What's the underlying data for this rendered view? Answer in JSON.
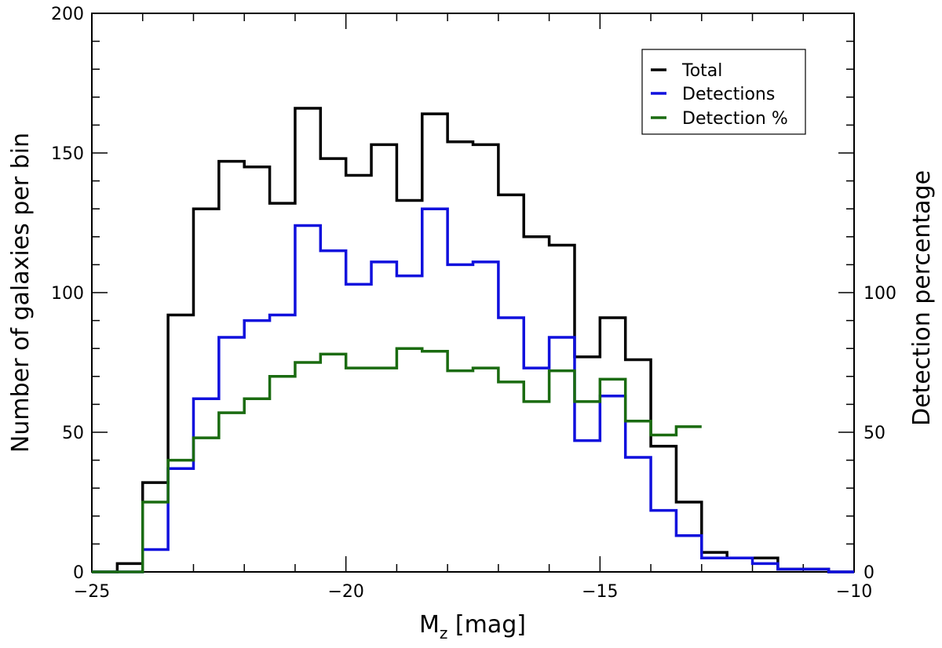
{
  "chart_data": {
    "type": "line",
    "step": true,
    "title": "",
    "xlabel": "M",
    "xlabel_sub": "z",
    "xlabel_unit": " [mag]",
    "ylabel": "Number of galaxies per bin",
    "y2label": "Detection percentage",
    "xlim": [
      -25,
      -10
    ],
    "ylim": [
      0,
      200
    ],
    "y2lim": [
      0,
      200
    ],
    "xticks": [
      -25,
      -20,
      -15,
      -10
    ],
    "xtick_labels": [
      "−25",
      "−20",
      "−15",
      "−10"
    ],
    "yticks": [
      0,
      50,
      100,
      150,
      200
    ],
    "ytick_labels": [
      "0",
      "50",
      "100",
      "150",
      "200"
    ],
    "y2ticks": [
      0,
      50,
      100
    ],
    "y2tick_labels": [
      "0",
      "50",
      "100"
    ],
    "legend_position": "top-right",
    "series": [
      {
        "name": "Total",
        "color": "#000000",
        "x": [
          -24.75,
          -24.25,
          -23.75,
          -23.25,
          -22.75,
          -22.25,
          -21.75,
          -21.25,
          -20.75,
          -20.25,
          -19.75,
          -19.25,
          -18.75,
          -18.25,
          -17.75,
          -17.25,
          -16.75,
          -16.25,
          -15.75,
          -15.25,
          -14.75,
          -14.25,
          -13.75,
          -13.25,
          -12.75,
          -12.25,
          -11.75,
          -11.25,
          -10.75,
          -10.25
        ],
        "values": [
          0,
          3,
          32,
          92,
          130,
          147,
          145,
          132,
          166,
          148,
          142,
          153,
          133,
          164,
          154,
          153,
          135,
          120,
          117,
          77,
          91,
          76,
          45,
          25,
          7,
          5,
          5,
          1,
          1,
          0
        ]
      },
      {
        "name": "Detections",
        "color": "#1010dd",
        "x": [
          -24.75,
          -24.25,
          -23.75,
          -23.25,
          -22.75,
          -22.25,
          -21.75,
          -21.25,
          -20.75,
          -20.25,
          -19.75,
          -19.25,
          -18.75,
          -18.25,
          -17.75,
          -17.25,
          -16.75,
          -16.25,
          -15.75,
          -15.25,
          -14.75,
          -14.25,
          -13.75,
          -13.25,
          -12.75,
          -12.25,
          -11.75,
          -11.25,
          -10.75,
          -10.25
        ],
        "values": [
          0,
          0,
          8,
          37,
          62,
          84,
          90,
          92,
          124,
          115,
          103,
          111,
          106,
          130,
          110,
          111,
          91,
          73,
          84,
          47,
          63,
          41,
          22,
          13,
          5,
          5,
          3,
          1,
          1,
          0
        ]
      },
      {
        "name": "Detection %",
        "color": "#1a6b10",
        "axis": "right",
        "x": [
          -24.75,
          -24.25,
          -23.75,
          -23.25,
          -22.75,
          -22.25,
          -21.75,
          -21.25,
          -20.75,
          -20.25,
          -19.75,
          -19.25,
          -18.75,
          -18.25,
          -17.75,
          -17.25,
          -16.75,
          -16.25,
          -15.75,
          -15.25,
          -14.75,
          -14.25,
          -13.75,
          -13.25
        ],
        "values": [
          0,
          0,
          25,
          40,
          48,
          57,
          62,
          70,
          75,
          78,
          73,
          73,
          80,
          79,
          72,
          73,
          68,
          61,
          72,
          61,
          69,
          54,
          49,
          52
        ]
      }
    ]
  }
}
